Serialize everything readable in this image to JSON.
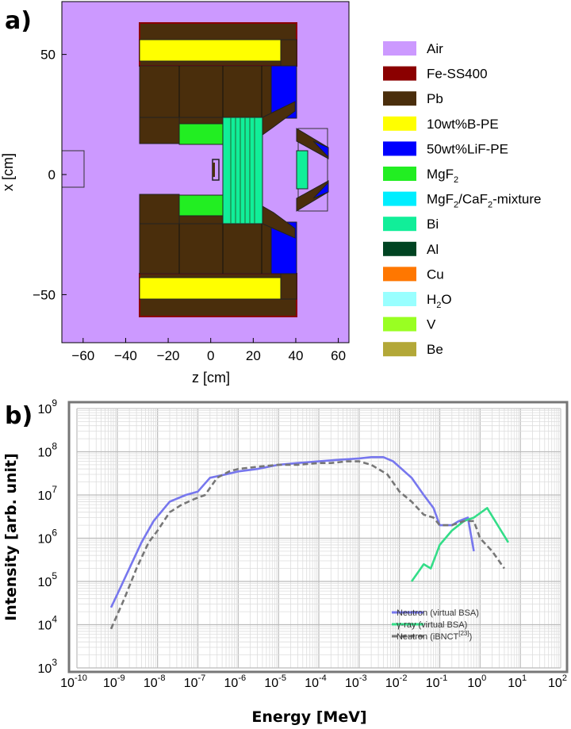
{
  "panel_a": {
    "label": "a)",
    "xlabel": "z [cm]",
    "ylabel": "x [cm]",
    "x_ticks": [
      "−60",
      "−40",
      "−20",
      "0",
      "20",
      "40",
      "60"
    ],
    "y_ticks": [
      "50",
      "0",
      "−50"
    ],
    "materials": [
      {
        "name": "Air",
        "color": "#cc99ff"
      },
      {
        "name": "Fe-SS400",
        "color": "#8b0000"
      },
      {
        "name": "Pb",
        "color": "#4a2e0c"
      },
      {
        "name": "10wt%B-PE",
        "color": "#ffff00"
      },
      {
        "name": "50wt%LiF-PE",
        "color": "#0000ff"
      },
      {
        "name": "MgF",
        "sub": "2",
        "tail": "",
        "color": "#22ee22"
      },
      {
        "name": "MgF",
        "sub": "2",
        "tail": "/CaF",
        "sub2": "2",
        "tail2": "-mixture",
        "color": "#00eeff"
      },
      {
        "name": "Bi",
        "color": "#11ee99"
      },
      {
        "name": "Al",
        "color": "#004422"
      },
      {
        "name": "Cu",
        "color": "#ff7700"
      },
      {
        "name": "H",
        "sub": "2",
        "tail": "O",
        "color": "#99ffff"
      },
      {
        "name": "V",
        "color": "#99ff22"
      },
      {
        "name": "Be",
        "color": "#b3a838"
      }
    ]
  },
  "panel_b": {
    "label": "b)",
    "xlabel": "Energy [MeV]",
    "ylabel": "Intensity [arb. unit]",
    "x_tick_exponents": [
      "-10",
      "-9",
      "-8",
      "-7",
      "-6",
      "-5",
      "-4",
      "-3",
      "-2",
      "-1",
      "0",
      "1",
      "2"
    ],
    "y_tick_exponents": [
      "3",
      "4",
      "5",
      "6",
      "7",
      "8",
      "9"
    ],
    "legend": [
      {
        "text": "Neutron (virtual BSA)",
        "color": "#7777ee",
        "dash": false
      },
      {
        "text": "γ-ray (virtual BSA)",
        "color": "#33dd88",
        "dash": false
      },
      {
        "text": "Neutron (iBNCT",
        "sup": "[23]",
        "tail": ")",
        "color": "#777777",
        "dash": true
      }
    ]
  },
  "chart_data": [
    {
      "type": "diagram",
      "title": "",
      "xlabel": "z [cm]",
      "ylabel": "x [cm]",
      "xlim": [
        -70,
        65
      ],
      "ylim": [
        -70,
        72
      ],
      "legend": [
        "Air",
        "Fe-SS400",
        "Pb",
        "10wt%B-PE",
        "50wt%LiF-PE",
        "MgF2",
        "MgF2/CaF2-mixture",
        "Bi",
        "Al",
        "Cu",
        "H2O",
        "V",
        "Be"
      ]
    },
    {
      "type": "line",
      "title": "",
      "xlabel": "Energy [MeV]",
      "ylabel": "Intensity [arb. unit]",
      "xscale": "log",
      "yscale": "log",
      "xlim": [
        1e-10,
        100
      ],
      "ylim": [
        1000,
        1000000000
      ],
      "grid": true,
      "legend_position": "bottom-right",
      "series": [
        {
          "name": "Neutron (virtual BSA)",
          "color": "#7777ee",
          "style": "solid",
          "x": [
            7e-10,
            1e-09,
            2e-09,
            4e-09,
            8e-09,
            2e-08,
            5e-08,
            1e-07,
            2e-07,
            5e-07,
            1e-06,
            3e-06,
            1e-05,
            3e-05,
            0.0001,
            0.0003,
            0.001,
            0.002,
            0.004,
            0.007,
            0.02,
            0.04,
            0.07,
            0.1,
            0.2,
            0.3,
            0.5,
            0.7
          ],
          "y": [
            25000.0,
            50000.0,
            200000.0,
            800000.0,
            2500000.0,
            7000000.0,
            10000000.0,
            12000000.0,
            25000000.0,
            30000000.0,
            35000000.0,
            40000000.0,
            50000000.0,
            55000000.0,
            60000000.0,
            65000000.0,
            70000000.0,
            75000000.0,
            75000000.0,
            60000000.0,
            25000000.0,
            10000000.0,
            5000000.0,
            2000000.0,
            2000000.0,
            2500000.0,
            3000000.0,
            500000.0
          ]
        },
        {
          "name": "γ-ray (virtual BSA)",
          "color": "#33dd88",
          "style": "solid",
          "x": [
            0.02,
            0.04,
            0.06,
            0.1,
            0.2,
            0.4,
            0.7,
            1.5,
            5
          ],
          "y": [
            100000.0,
            250000.0,
            200000.0,
            700000.0,
            1500000.0,
            2500000.0,
            3000000.0,
            5000000.0,
            800000.0
          ]
        },
        {
          "name": "Neutron (iBNCT[23])",
          "color": "#777777",
          "style": "dashed",
          "x": [
            7e-10,
            1.5e-09,
            3e-09,
            6e-09,
            1e-08,
            2e-08,
            4e-08,
            8e-08,
            1.5e-07,
            3e-07,
            6e-07,
            1e-06,
            3e-06,
            1e-05,
            3e-05,
            0.0001,
            0.0002,
            0.0005,
            0.001,
            0.002,
            0.005,
            0.01,
            0.02,
            0.04,
            0.07,
            0.1,
            0.2,
            0.4,
            0.7,
            1,
            2,
            4
          ],
          "y": [
            8000.0,
            40000.0,
            200000.0,
            800000.0,
            1500000.0,
            4000000.0,
            6000000.0,
            8000000.0,
            10000000.0,
            25000000.0,
            35000000.0,
            40000000.0,
            45000000.0,
            50000000.0,
            50000000.0,
            55000000.0,
            55000000.0,
            60000000.0,
            60000000.0,
            50000000.0,
            30000000.0,
            12000000.0,
            7000000.0,
            3500000.0,
            3000000.0,
            2000000.0,
            2000000.0,
            2500000.0,
            2500000.0,
            1000000.0,
            500000.0,
            200000.0
          ]
        }
      ]
    }
  ]
}
